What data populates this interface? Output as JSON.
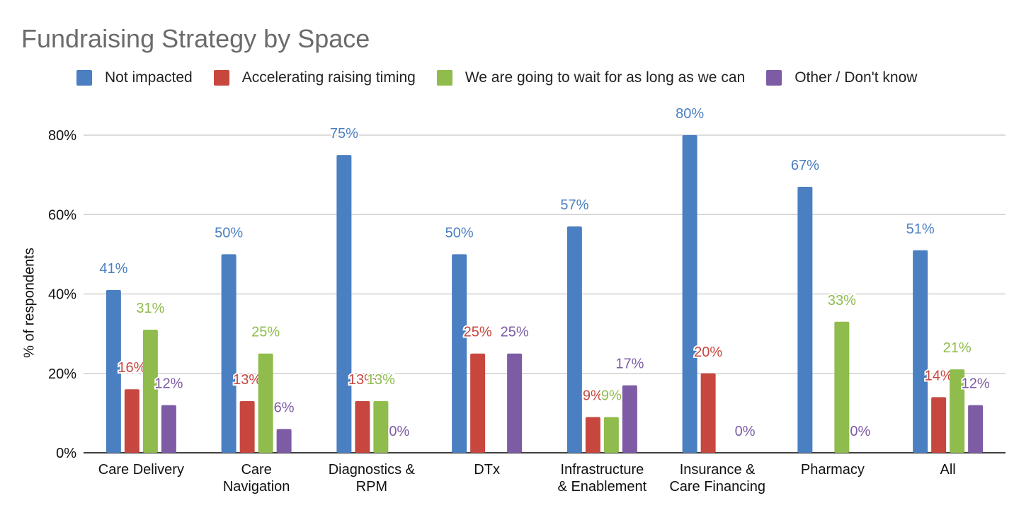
{
  "colors": {
    "not_impacted": "#4a7fc1",
    "accelerating": "#c7473f",
    "wait": "#8fbc4c",
    "other": "#7d5ca5",
    "grid": "#c8c8c8",
    "axis": "#000000"
  },
  "chart_data": {
    "type": "bar",
    "title": "Fundraising Strategy by Space",
    "ylabel": "% of respondents",
    "xlabel": "",
    "ylim": [
      0,
      80
    ],
    "yticks": [
      "0%",
      "20%",
      "40%",
      "60%",
      "80%"
    ],
    "grid": true,
    "legend_position": "top",
    "categories": [
      [
        "Care Delivery"
      ],
      [
        "Care",
        "Navigation"
      ],
      [
        "Diagnostics &",
        "RPM"
      ],
      [
        "DTx"
      ],
      [
        "Infrastructure",
        "& Enablement"
      ],
      [
        "Insurance &",
        "Care Financing"
      ],
      [
        "Pharmacy"
      ],
      [
        "All"
      ]
    ],
    "series": [
      {
        "name": "Not impacted",
        "color": "#4a7fc1",
        "values": [
          41,
          50,
          75,
          50,
          57,
          80,
          67,
          51
        ],
        "labels": [
          "41%",
          "50%",
          "75%",
          "50%",
          "57%",
          "80%",
          "67%",
          "51%"
        ]
      },
      {
        "name": "Accelerating raising timing",
        "color": "#c7473f",
        "values": [
          16,
          13,
          13,
          25,
          9,
          20,
          0,
          14
        ],
        "labels": [
          "16%",
          "13%",
          "13%",
          "25%",
          "9%",
          "20%",
          "",
          "14%"
        ]
      },
      {
        "name": "We are going to wait for as long as we can",
        "color": "#8fbc4c",
        "values": [
          31,
          25,
          13,
          0,
          9,
          0,
          33,
          21
        ],
        "labels": [
          "31%",
          "25%",
          "13%",
          "",
          "9%",
          "",
          "33%",
          "21%"
        ]
      },
      {
        "name": "Other / Don't know",
        "color": "#7d5ca5",
        "values": [
          12,
          6,
          0,
          25,
          17,
          0,
          0,
          12
        ],
        "labels": [
          "12%",
          "6%",
          "0%",
          "25%",
          "17%",
          "0%",
          "0%",
          "12%"
        ]
      }
    ]
  }
}
